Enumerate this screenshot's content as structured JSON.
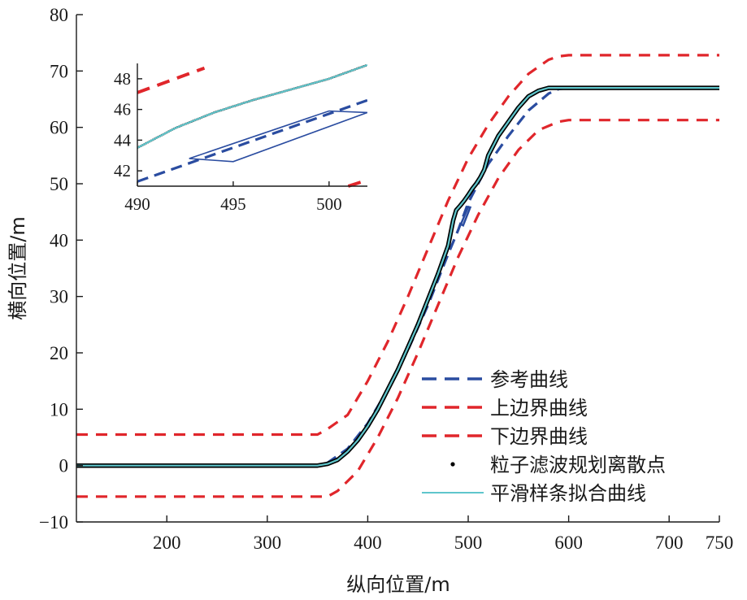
{
  "chart_data": {
    "type": "line",
    "xlabel": "纵向位置/m",
    "ylabel": "横向位置/m",
    "xlim": [
      110,
      750
    ],
    "ylim": [
      -10,
      80
    ],
    "xticks": [
      200,
      300,
      400,
      500,
      600,
      700,
      750
    ],
    "yticks": [
      -10,
      0,
      10,
      20,
      30,
      40,
      50,
      60,
      70,
      80
    ],
    "grid": false,
    "legend_position": "bottom-right",
    "colors": {
      "reference": "#2a4ca0",
      "boundary": "#e0262b",
      "particles": "#000000",
      "spline": "#5fc6cc"
    },
    "series": [
      {
        "name": "参考曲线",
        "style": "dashed",
        "x": [
          110,
          350,
          360,
          380,
          400,
          420,
          440,
          460,
          480,
          490,
          500,
          520,
          540,
          560,
          580,
          590,
          600,
          620,
          750
        ],
        "y": [
          0,
          0,
          0.5,
          3,
          7.5,
          13.5,
          20.5,
          28.5,
          37.5,
          41.8,
          46.6,
          53.5,
          58.5,
          63,
          66,
          66.8,
          67,
          67,
          67
        ]
      },
      {
        "name": "上边界曲线",
        "style": "dashed",
        "x": [
          110,
          350,
          360,
          380,
          400,
          420,
          440,
          460,
          480,
          500,
          520,
          540,
          560,
          580,
          590,
          600,
          620,
          750
        ],
        "y": [
          5.5,
          5.5,
          6.5,
          9,
          15,
          22,
          30,
          38.5,
          47,
          54.5,
          60.5,
          65.5,
          69.5,
          72,
          72.6,
          72.8,
          72.8,
          72.8
        ]
      },
      {
        "name": "下边界曲线",
        "style": "dashed",
        "x": [
          110,
          360,
          370,
          390,
          410,
          430,
          450,
          470,
          490,
          510,
          530,
          550,
          570,
          590,
          600,
          620,
          750
        ],
        "y": [
          -5.5,
          -5.5,
          -4.5,
          -1,
          5,
          12,
          20,
          28.5,
          37,
          44.5,
          51,
          56,
          59.5,
          61,
          61.3,
          61.3,
          61.3
        ]
      },
      {
        "name": "粒子滤波规划离散点",
        "style": "points",
        "x": [
          110,
          200,
          300,
          350,
          360,
          370,
          380,
          390,
          400,
          410,
          420,
          430,
          440,
          450,
          460,
          470,
          480,
          485,
          488,
          492,
          496,
          500,
          504,
          508,
          512,
          516,
          520,
          530,
          540,
          550,
          560,
          570,
          580,
          590,
          600,
          620,
          700,
          750
        ],
        "y": [
          0,
          0,
          0,
          0,
          0.3,
          1,
          2.5,
          4.5,
          7,
          10,
          13.5,
          17,
          21,
          25,
          29.5,
          34,
          39,
          43.5,
          45.3,
          46.1,
          47,
          48,
          49.1,
          50,
          51.1,
          52.5,
          55,
          58.5,
          61,
          63.5,
          65.5,
          66.5,
          67,
          67,
          67,
          67,
          67,
          67
        ]
      },
      {
        "name": "平滑样条拟合曲线",
        "style": "solid",
        "x": [
          110,
          200,
          300,
          350,
          360,
          370,
          380,
          390,
          400,
          410,
          420,
          430,
          440,
          450,
          460,
          470,
          480,
          485,
          488,
          492,
          496,
          500,
          504,
          508,
          512,
          516,
          520,
          530,
          540,
          550,
          560,
          570,
          580,
          590,
          600,
          620,
          700,
          750
        ],
        "y": [
          0,
          0,
          0,
          0,
          0.3,
          1,
          2.5,
          4.5,
          7,
          10,
          13.5,
          17,
          21,
          25,
          29.5,
          34,
          39,
          43.5,
          45.3,
          46.1,
          47,
          48,
          49.1,
          50,
          51.1,
          52.5,
          55,
          58.5,
          61,
          63.5,
          65.5,
          66.5,
          67,
          67,
          67,
          67,
          67,
          67
        ]
      }
    ],
    "inset": {
      "xlim": [
        490,
        502
      ],
      "ylim": [
        41,
        49
      ],
      "xticks": [
        490,
        495,
        500
      ],
      "yticks": [
        42,
        44,
        46,
        48
      ],
      "series": [
        {
          "ref": "参考曲线",
          "x": [
            490,
            502
          ],
          "y": [
            41.3,
            46.6
          ]
        },
        {
          "ref": "上边界曲线",
          "x": [
            490,
            493.5
          ],
          "y": [
            47.1,
            48.7
          ]
        },
        {
          "ref": "下边界曲线",
          "x": [
            501,
            502
          ],
          "y": [
            41,
            41.4
          ]
        },
        {
          "ref": "粒子滤波规划离散点",
          "x": [
            490,
            492,
            494,
            496,
            498,
            500,
            502
          ],
          "y": [
            43.5,
            44.8,
            45.8,
            46.6,
            47.3,
            48.0,
            48.9
          ]
        },
        {
          "ref": "平滑样条拟合曲线",
          "x": [
            490,
            492,
            494,
            496,
            498,
            500,
            502
          ],
          "y": [
            43.5,
            44.8,
            45.8,
            46.6,
            47.3,
            48.0,
            48.9
          ]
        },
        {
          "ref": "zoom-box",
          "x": [
            492.7,
            495,
            502,
            500,
            492.7
          ],
          "y": [
            42.8,
            42.6,
            45.8,
            45.9,
            42.8
          ]
        }
      ]
    }
  }
}
